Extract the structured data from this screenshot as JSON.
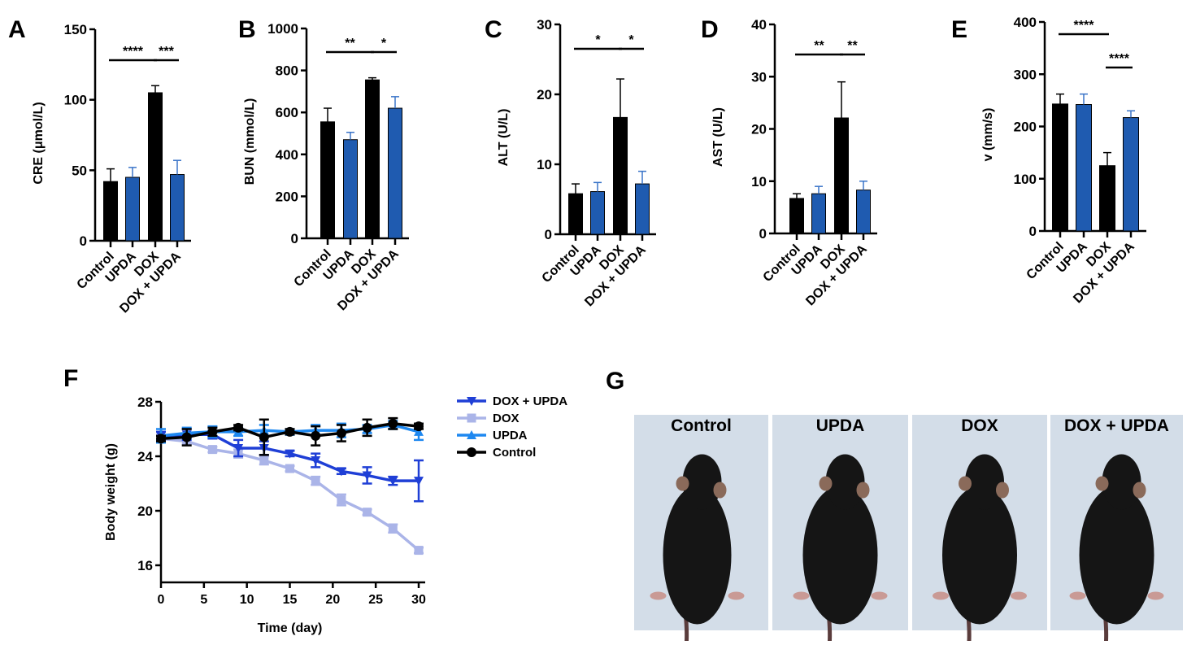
{
  "panels": {
    "A": "A",
    "B": "B",
    "C": "C",
    "D": "D",
    "E": "E",
    "F": "F",
    "G": "G"
  },
  "colors": {
    "control": "#000000",
    "updа_bar": "#1f5bb0",
    "dox_plus_updа_line": "#1f3fd6",
    "dox_line": "#aab4e8",
    "updа_line": "#1e88f0"
  },
  "chart_data": [
    {
      "panel": "A",
      "type": "bar",
      "categories": [
        "Control",
        "UPDA",
        "DOX",
        "DOX + UPDA"
      ],
      "values": [
        42,
        45,
        105,
        47
      ],
      "error_upper": [
        51,
        52,
        110,
        57
      ],
      "ylabel": "CRE (μmol/L)",
      "ylim": [
        0,
        150
      ],
      "yticks": [
        "0",
        "50",
        "100",
        "150"
      ],
      "bar_colors": [
        "#000000",
        "#1f5bb0",
        "#000000",
        "#1f5bb0"
      ],
      "significance": [
        {
          "pair": [
            0,
            2
          ],
          "label": "****"
        },
        {
          "pair": [
            2,
            3
          ],
          "label": "***"
        }
      ]
    },
    {
      "panel": "B",
      "type": "bar",
      "categories": [
        "Control",
        "UPDA",
        "DOX",
        "DOX + UPDA"
      ],
      "values": [
        555,
        470,
        755,
        620
      ],
      "error_upper": [
        620,
        505,
        765,
        675
      ],
      "ylabel": "BUN (mmol/L)",
      "ylim": [
        0,
        1000
      ],
      "yticks": [
        "0",
        "200",
        "400",
        "600",
        "800",
        "1000"
      ],
      "bar_colors": [
        "#000000",
        "#1f5bb0",
        "#000000",
        "#1f5bb0"
      ],
      "significance": [
        {
          "pair": [
            0,
            2
          ],
          "label": "**"
        },
        {
          "pair": [
            2,
            3
          ],
          "label": "*"
        }
      ]
    },
    {
      "panel": "C",
      "type": "bar",
      "categories": [
        "Control",
        "UPDA",
        "DOX",
        "DOX + UPDA"
      ],
      "values": [
        5.8,
        6.1,
        16.7,
        7.2
      ],
      "error_upper": [
        7.2,
        7.4,
        22.2,
        9.0
      ],
      "ylabel": "ALT (U/L)",
      "ylim": [
        0,
        30
      ],
      "yticks": [
        "0",
        "10",
        "20",
        "30"
      ],
      "bar_colors": [
        "#000000",
        "#1f5bb0",
        "#000000",
        "#1f5bb0"
      ],
      "significance": [
        {
          "pair": [
            0,
            2
          ],
          "label": "*"
        },
        {
          "pair": [
            2,
            3
          ],
          "label": "*"
        }
      ]
    },
    {
      "panel": "D",
      "type": "bar",
      "categories": [
        "Control",
        "UPDA",
        "DOX",
        "DOX + UPDA"
      ],
      "values": [
        6.7,
        7.6,
        22.1,
        8.3
      ],
      "error_upper": [
        7.6,
        9.0,
        29.0,
        10.0
      ],
      "ylabel": "AST (U/L)",
      "ylim": [
        0,
        40
      ],
      "yticks": [
        "0",
        "10",
        "20",
        "30",
        "40"
      ],
      "bar_colors": [
        "#000000",
        "#1f5bb0",
        "#000000",
        "#1f5bb0"
      ],
      "significance": [
        {
          "pair": [
            0,
            2
          ],
          "label": "**"
        },
        {
          "pair": [
            2,
            3
          ],
          "label": "**"
        }
      ]
    },
    {
      "panel": "E",
      "type": "bar",
      "categories": [
        "Control",
        "UPDA",
        "DOX",
        "DOX + UPDA"
      ],
      "values": [
        243,
        242,
        125,
        217
      ],
      "error_upper": [
        262,
        262,
        150,
        230
      ],
      "ylabel": "v (mm/s)",
      "ylim": [
        0,
        400
      ],
      "yticks": [
        "0",
        "100",
        "200",
        "300",
        "400"
      ],
      "bar_colors": [
        "#000000",
        "#1f5bb0",
        "#000000",
        "#1f5bb0"
      ],
      "significance": [
        {
          "pair": [
            0,
            2
          ],
          "label": "****"
        },
        {
          "pair": [
            2,
            3
          ],
          "label": "****"
        }
      ]
    },
    {
      "panel": "F",
      "type": "line",
      "xlabel": "Time (day)",
      "ylabel": "Body weight (g)",
      "xlim": [
        0,
        30
      ],
      "ylim": [
        16,
        28
      ],
      "xticks": [
        "0",
        "5",
        "10",
        "15",
        "20",
        "25",
        "30"
      ],
      "yticks": [
        "16",
        "20",
        "24",
        "28"
      ],
      "legend": "right",
      "x": [
        0,
        3,
        6,
        9,
        12,
        15,
        18,
        21,
        24,
        27,
        30
      ],
      "series": [
        {
          "name": "DOX + UPDA",
          "marker": "triangle-down",
          "color": "#1f3fd6",
          "values": [
            25.5,
            25.6,
            25.6,
            24.6,
            24.6,
            24.2,
            23.7,
            22.9,
            22.6,
            22.2,
            22.2
          ],
          "error": [
            0.3,
            0.4,
            0.3,
            0.6,
            0.5,
            0.2,
            0.5,
            0.2,
            0.6,
            0.3,
            1.5
          ]
        },
        {
          "name": "DOX",
          "marker": "square",
          "color": "#aab4e8",
          "values": [
            25.3,
            25.1,
            24.5,
            24.2,
            23.7,
            23.1,
            22.2,
            20.8,
            19.9,
            18.7,
            17.1
          ],
          "error": [
            0.3,
            0.2,
            0.2,
            0.3,
            0.3,
            0.2,
            0.3,
            0.4,
            0.2,
            0.3,
            0.2
          ]
        },
        {
          "name": "UPDA",
          "marker": "triangle-up",
          "color": "#1e88f0",
          "values": [
            25.5,
            25.7,
            25.8,
            25.8,
            25.9,
            25.8,
            25.9,
            25.9,
            26.0,
            26.3,
            25.8
          ],
          "error": [
            0.5,
            0.4,
            0.4,
            0.3,
            0.4,
            0.2,
            0.4,
            0.5,
            0.3,
            0.3,
            0.6
          ]
        },
        {
          "name": "Control",
          "marker": "circle",
          "color": "#000000",
          "values": [
            25.3,
            25.4,
            25.8,
            26.1,
            25.4,
            25.8,
            25.5,
            25.7,
            26.1,
            26.4,
            26.2
          ],
          "error": [
            0.2,
            0.6,
            0.3,
            0.2,
            1.3,
            0.2,
            0.7,
            0.6,
            0.6,
            0.4,
            0.2
          ]
        }
      ]
    }
  ],
  "photos": [
    "Control",
    "UPDA",
    "DOX",
    "DOX + UPDA"
  ]
}
